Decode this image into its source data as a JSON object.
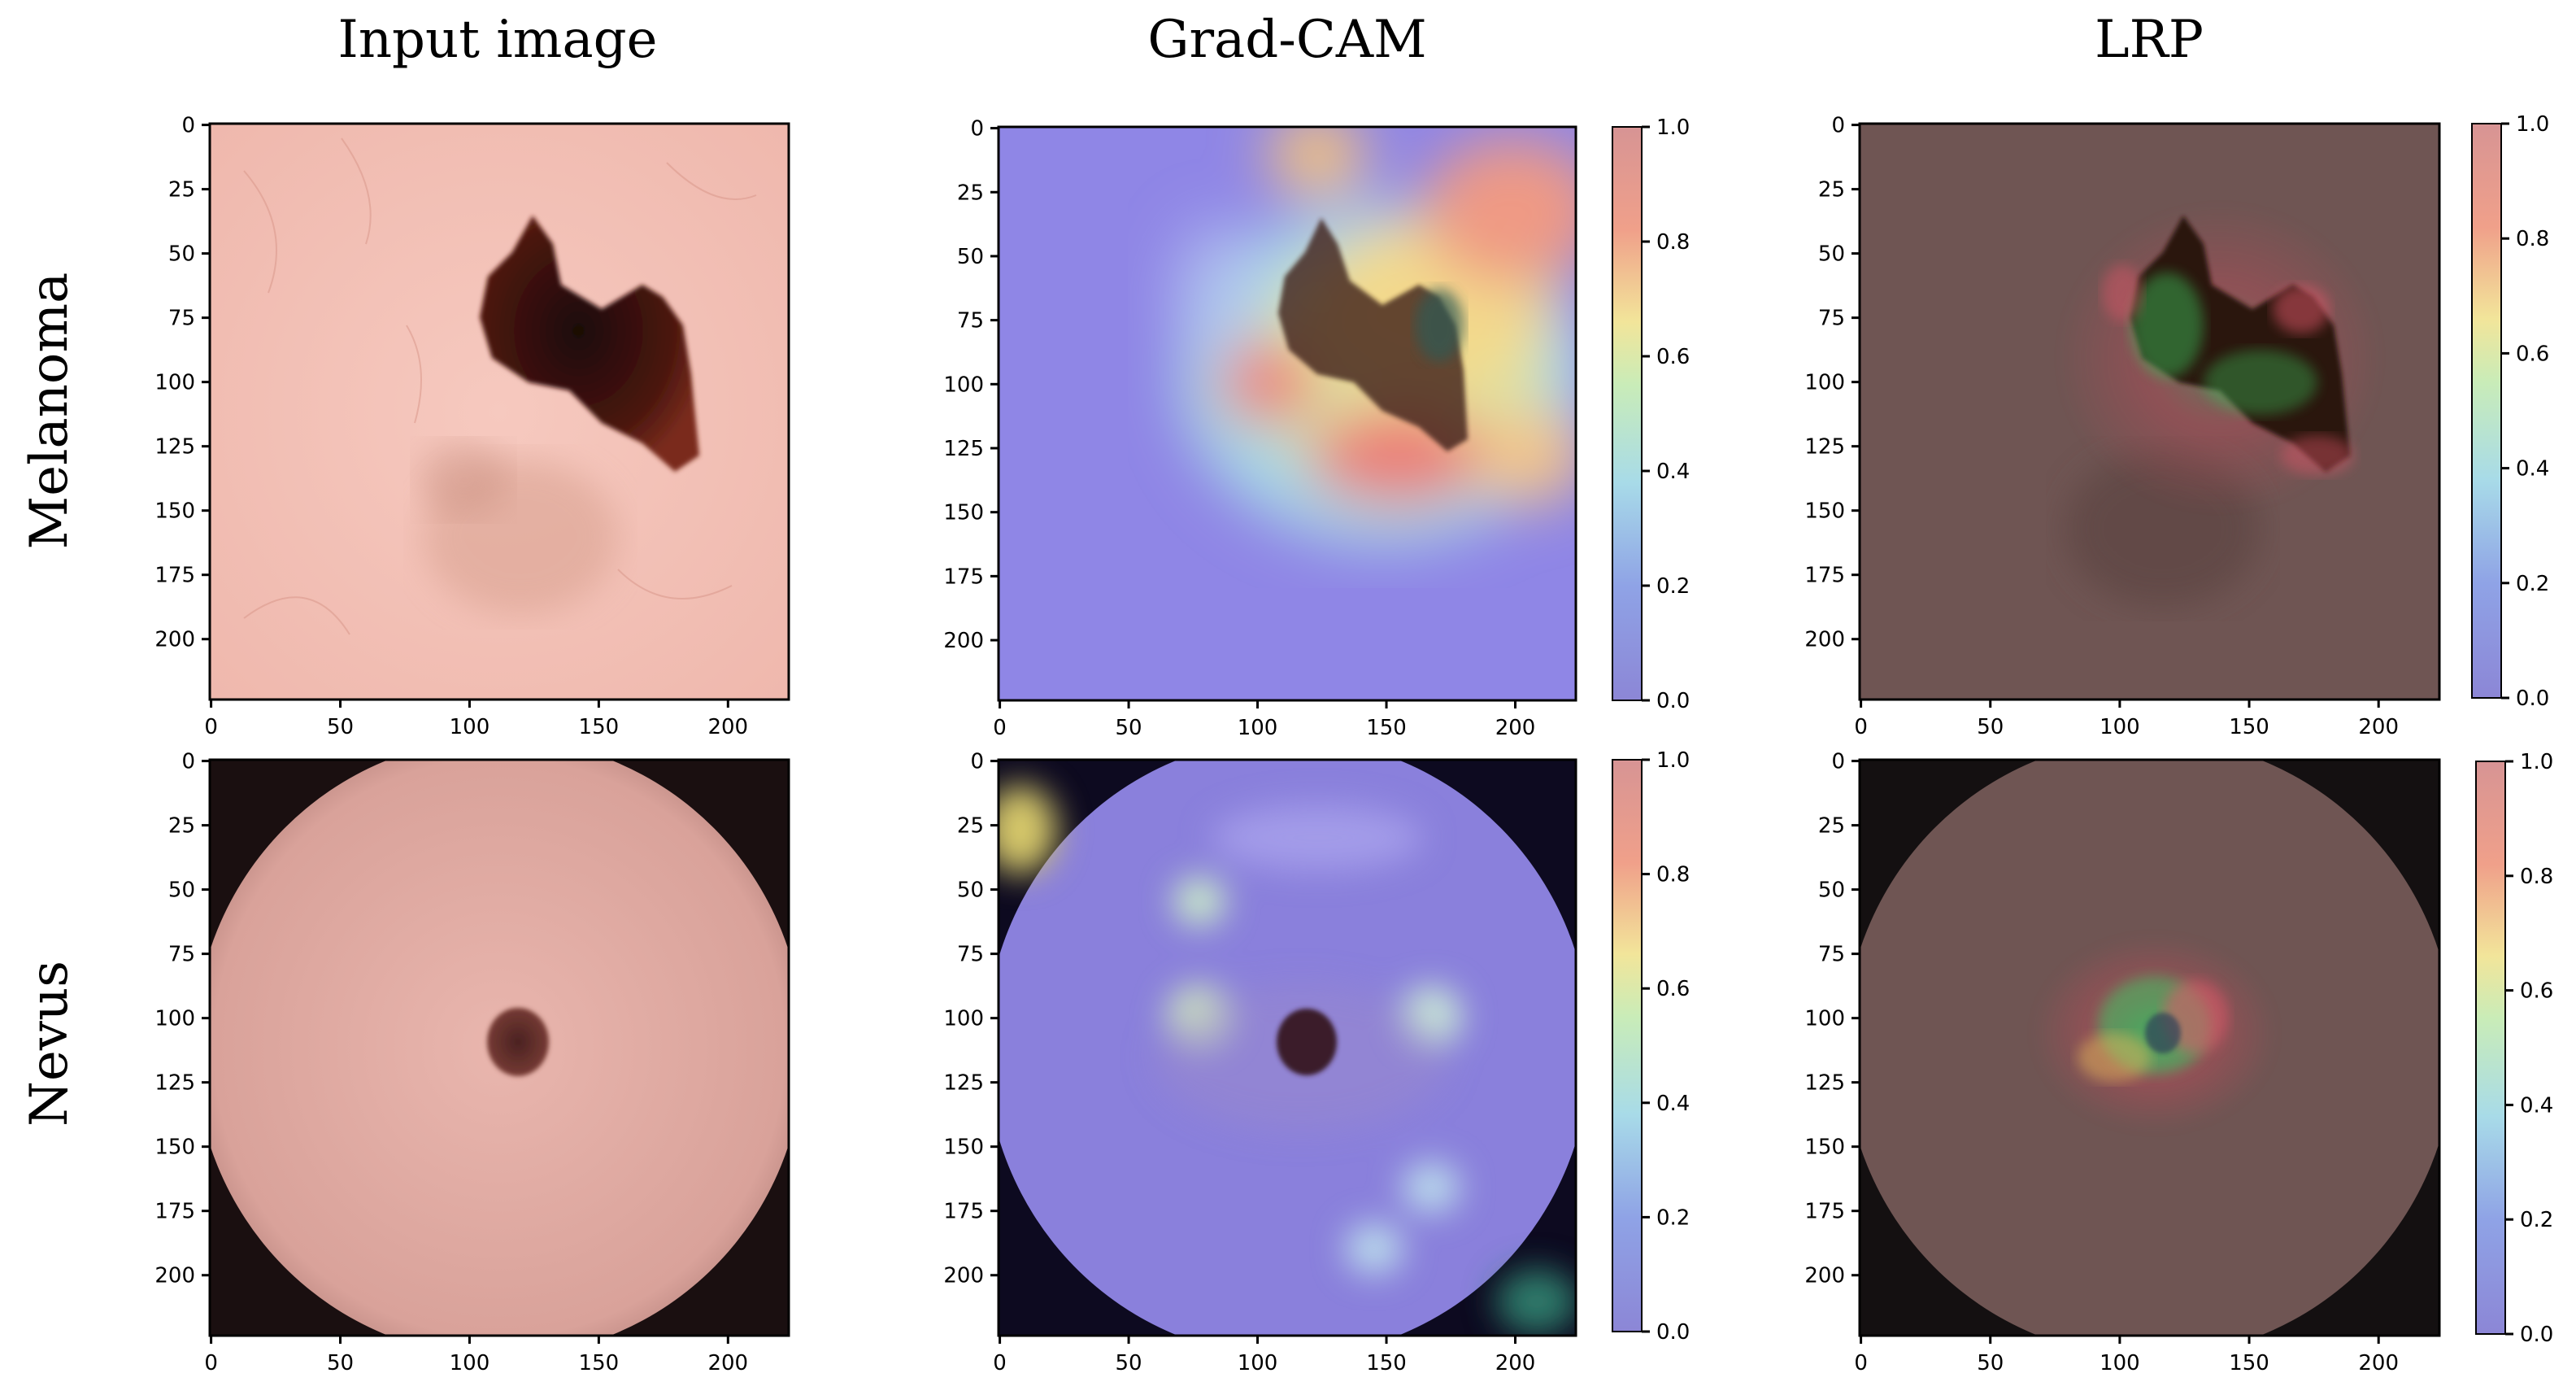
{
  "column_titles": [
    "Input image",
    "Grad-CAM",
    "LRP"
  ],
  "row_labels": [
    "Melanoma",
    "Nevus"
  ],
  "image_axes": {
    "x_ticks": [
      "0",
      "50",
      "100",
      "150",
      "200"
    ],
    "y_ticks": [
      "0",
      "25",
      "50",
      "75",
      "100",
      "125",
      "150",
      "175",
      "200"
    ]
  },
  "colorbar": {
    "ticks": [
      "0.0",
      "0.2",
      "0.4",
      "0.6",
      "0.8",
      "1.0"
    ],
    "colormap": "jet (semi-transparent)"
  },
  "colors": {
    "skin_light": "#f3c2b8",
    "lesion_dark": "#2a0c08",
    "gradcam_base": "#8f86e6",
    "lrp_base": "#6f5553",
    "vignette": "#1a0f10"
  }
}
